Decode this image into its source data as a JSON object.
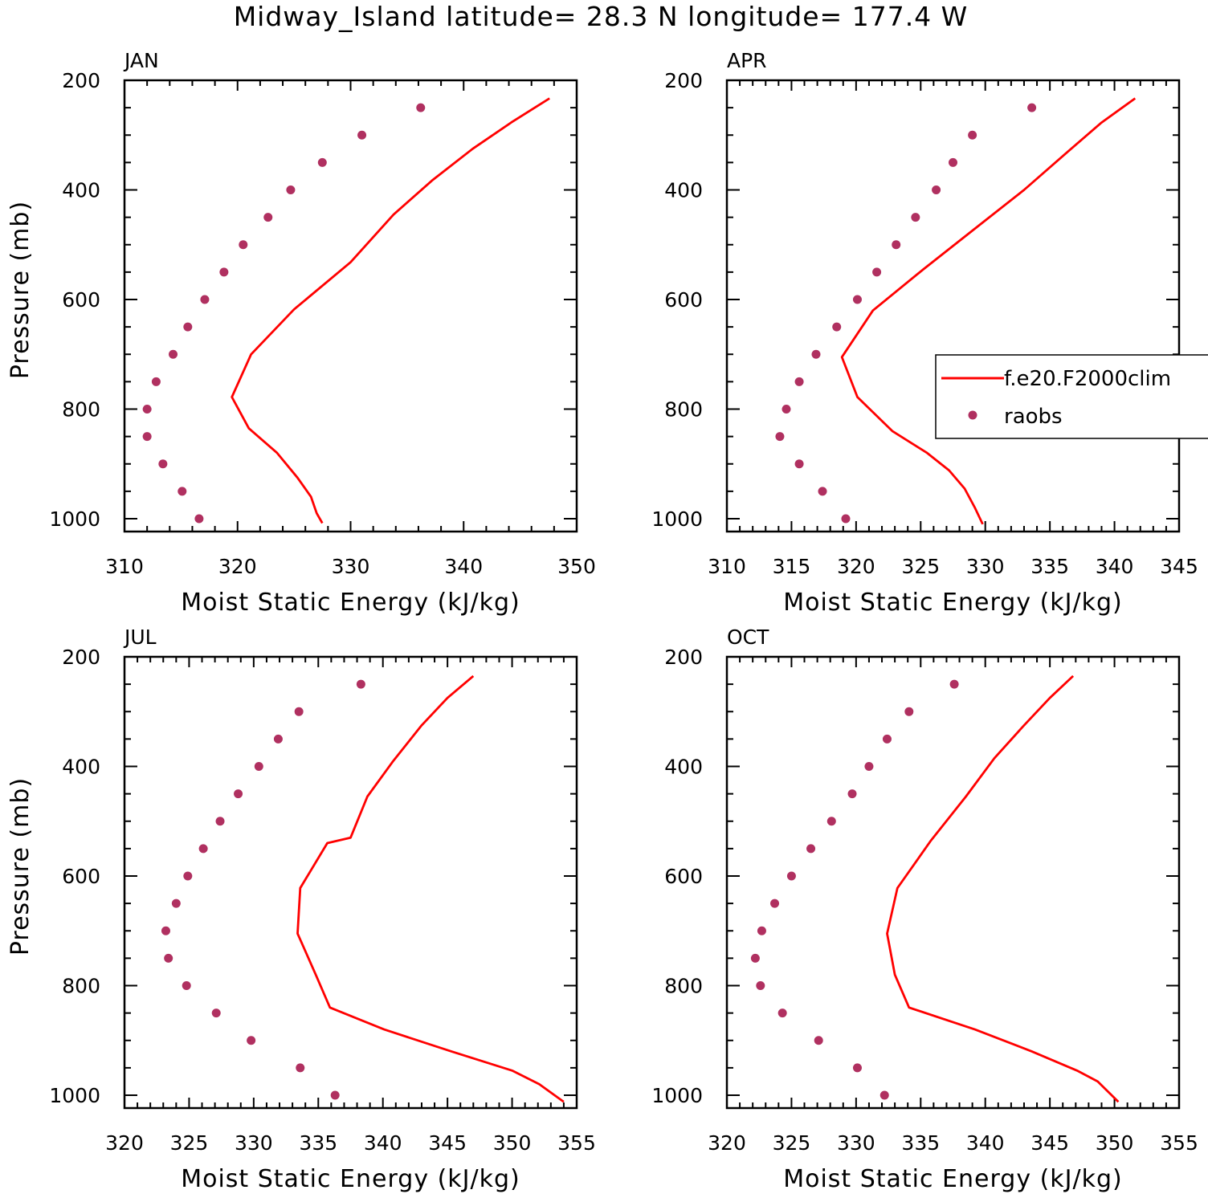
{
  "figure": {
    "title": "Midway_Island  latitude= 28.3 N longitude= 177.4 W"
  },
  "legend": {
    "model_label": "f.e20.F2000clim",
    "obs_label": "raobs"
  },
  "colors": {
    "model_line": "#ff0000",
    "obs_marker": "#b03060",
    "axis": "#000000"
  },
  "chart_data": [
    {
      "type": "line",
      "title": "JAN",
      "xlabel": "Moist Static Energy (kJ/kg)",
      "ylabel": "Pressure (mb)",
      "xlim": [
        310,
        350
      ],
      "ylim": [
        1025,
        200
      ],
      "xticks": [
        310,
        320,
        330,
        340,
        350
      ],
      "yticks": [
        200,
        400,
        600,
        800,
        1000
      ],
      "series": [
        {
          "name": "f.e20.F2000clim",
          "kind": "line",
          "x": [
            347.6,
            344.2,
            340.8,
            337.2,
            333.8,
            330.0,
            325.0,
            321.2,
            319.5,
            321.0,
            323.5,
            325.3,
            326.5,
            327.0,
            327.5
          ],
          "y": [
            233,
            277,
            325,
            383,
            445,
            532,
            618,
            700,
            778,
            835,
            880,
            925,
            960,
            990,
            1008
          ]
        },
        {
          "name": "raobs",
          "kind": "scatter",
          "x": [
            336.2,
            331.0,
            327.5,
            324.7,
            322.7,
            320.5,
            318.8,
            317.1,
            315.6,
            314.3,
            312.8,
            312.0,
            312.0,
            313.4,
            315.1,
            316.6
          ],
          "y": [
            250,
            300,
            350,
            400,
            450,
            500,
            550,
            600,
            650,
            700,
            750,
            800,
            850,
            900,
            950,
            1000
          ]
        }
      ]
    },
    {
      "type": "line",
      "title": "APR",
      "xlabel": "Moist Static Energy (kJ/kg)",
      "ylabel": "",
      "xlim": [
        310,
        345
      ],
      "ylim": [
        1025,
        200
      ],
      "xticks": [
        310,
        315,
        320,
        325,
        330,
        335,
        340,
        345
      ],
      "yticks": [
        200,
        400,
        600,
        800,
        1000
      ],
      "series": [
        {
          "name": "f.e20.F2000clim",
          "kind": "line",
          "x": [
            341.6,
            339.0,
            336.4,
            333.0,
            329.5,
            325.2,
            321.3,
            318.9,
            320.1,
            322.8,
            325.5,
            327.2,
            328.4,
            329.2,
            329.8
          ],
          "y": [
            233,
            277,
            330,
            400,
            465,
            545,
            620,
            705,
            778,
            840,
            880,
            912,
            945,
            980,
            1010
          ]
        },
        {
          "name": "raobs",
          "kind": "scatter",
          "x": [
            333.6,
            329.0,
            327.5,
            326.2,
            324.6,
            323.1,
            321.6,
            320.1,
            318.5,
            316.9,
            315.6,
            314.6,
            314.1,
            315.6,
            317.4,
            319.2
          ],
          "y": [
            250,
            300,
            350,
            400,
            450,
            500,
            550,
            600,
            650,
            700,
            750,
            800,
            850,
            900,
            950,
            1000
          ]
        }
      ]
    },
    {
      "type": "line",
      "title": "JUL",
      "xlabel": "Moist Static Energy (kJ/kg)",
      "ylabel": "Pressure (mb)",
      "xlim": [
        320,
        355
      ],
      "ylim": [
        1025,
        200
      ],
      "xticks": [
        320,
        325,
        330,
        335,
        340,
        345,
        350,
        355
      ],
      "yticks": [
        200,
        400,
        600,
        800,
        1000
      ],
      "series": [
        {
          "name": "f.e20.F2000clim",
          "kind": "line",
          "x": [
            347.0,
            345.0,
            343.0,
            340.8,
            338.8,
            337.5,
            335.7,
            333.6,
            333.4,
            334.8,
            335.9,
            340.1,
            345.3,
            350.0,
            352.1,
            354.0
          ],
          "y": [
            235,
            275,
            325,
            390,
            455,
            530,
            540,
            622,
            705,
            780,
            840,
            880,
            920,
            955,
            980,
            1012
          ]
        },
        {
          "name": "raobs",
          "kind": "scatter",
          "x": [
            338.3,
            333.5,
            331.9,
            330.4,
            328.8,
            327.4,
            326.1,
            324.9,
            324.0,
            323.2,
            323.4,
            324.8,
            327.1,
            329.8,
            333.6,
            336.3
          ],
          "y": [
            250,
            300,
            350,
            400,
            450,
            500,
            550,
            600,
            650,
            700,
            750,
            800,
            850,
            900,
            950,
            1000
          ]
        }
      ]
    },
    {
      "type": "line",
      "title": "OCT",
      "xlabel": "Moist Static Energy (kJ/kg)",
      "ylabel": "",
      "xlim": [
        320,
        355
      ],
      "ylim": [
        1025,
        200
      ],
      "xticks": [
        320,
        325,
        330,
        335,
        340,
        345,
        350,
        355
      ],
      "yticks": [
        200,
        400,
        600,
        800,
        1000
      ],
      "series": [
        {
          "name": "f.e20.F2000clim",
          "kind": "line",
          "x": [
            346.8,
            345.0,
            343.0,
            340.7,
            338.5,
            335.8,
            333.2,
            332.4,
            333.0,
            334.1,
            339.2,
            343.6,
            347.1,
            348.7,
            350.3
          ],
          "y": [
            235,
            275,
            325,
            385,
            455,
            535,
            622,
            705,
            780,
            840,
            880,
            920,
            955,
            975,
            1012
          ]
        },
        {
          "name": "raobs",
          "kind": "scatter",
          "x": [
            337.6,
            334.1,
            332.4,
            331.0,
            329.7,
            328.1,
            326.5,
            325.0,
            323.7,
            322.7,
            322.2,
            322.6,
            324.3,
            327.1,
            330.1,
            332.2
          ],
          "y": [
            250,
            300,
            350,
            400,
            450,
            500,
            550,
            600,
            650,
            700,
            750,
            800,
            850,
            900,
            950,
            1000
          ]
        }
      ]
    }
  ]
}
